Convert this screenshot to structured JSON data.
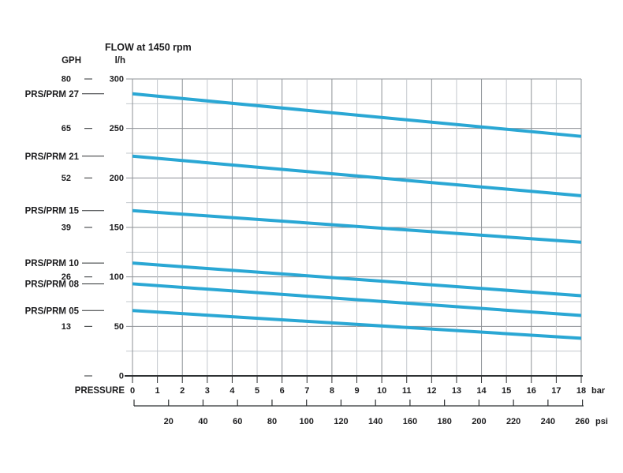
{
  "chart_data": {
    "type": "line",
    "title": "FLOW at 1450 rpm",
    "grid": true,
    "legend_position": "left-margin-inline-labels",
    "y_axis": {
      "left_unit_label": "GPH",
      "right_unit_label": "l/h",
      "range_lh": [
        0,
        300
      ],
      "minor_step_lh": 25,
      "major_step_lh": 50,
      "major_ticks": [
        {
          "lh": 300,
          "gph": 80
        },
        {
          "lh": 250,
          "gph": 65
        },
        {
          "lh": 200,
          "gph": 52
        },
        {
          "lh": 150,
          "gph": 39
        },
        {
          "lh": 100,
          "gph": 26
        },
        {
          "lh": 50,
          "gph": 13
        },
        {
          "lh": 0,
          "gph": null
        }
      ]
    },
    "x_axis": {
      "label": "PRESSURE",
      "range_bar": [
        0,
        18
      ],
      "bar_unit": "bar",
      "bar_ticks": [
        0,
        1,
        2,
        3,
        4,
        5,
        6,
        7,
        8,
        9,
        10,
        11,
        12,
        13,
        14,
        15,
        16,
        17,
        18
      ],
      "psi_unit": "psi",
      "psi_ticks": [
        20,
        40,
        60,
        80,
        100,
        120,
        140,
        160,
        180,
        200,
        220,
        240,
        260
      ]
    },
    "series": [
      {
        "name": "PRS/PRM 27",
        "pressure_bar": [
          0,
          18
        ],
        "flow_lh": [
          285,
          242
        ]
      },
      {
        "name": "PRS/PRM 21",
        "pressure_bar": [
          0,
          18
        ],
        "flow_lh": [
          222,
          182
        ]
      },
      {
        "name": "PRS/PRM 15",
        "pressure_bar": [
          0,
          18
        ],
        "flow_lh": [
          167,
          135
        ]
      },
      {
        "name": "PRS/PRM 10",
        "pressure_bar": [
          0,
          18
        ],
        "flow_lh": [
          114,
          81
        ]
      },
      {
        "name": "PRS/PRM 08",
        "pressure_bar": [
          0,
          18
        ],
        "flow_lh": [
          93,
          61
        ]
      },
      {
        "name": "PRS/PRM 05",
        "pressure_bar": [
          0,
          18
        ],
        "flow_lh": [
          66,
          38
        ]
      }
    ],
    "colors": {
      "curve": "#2aa7d4",
      "grid_major": "#8d9196",
      "grid_minor": "#c3c8cd",
      "axis": "#2e3133",
      "text": "#1c1c1e",
      "background": "#ffffff"
    }
  }
}
